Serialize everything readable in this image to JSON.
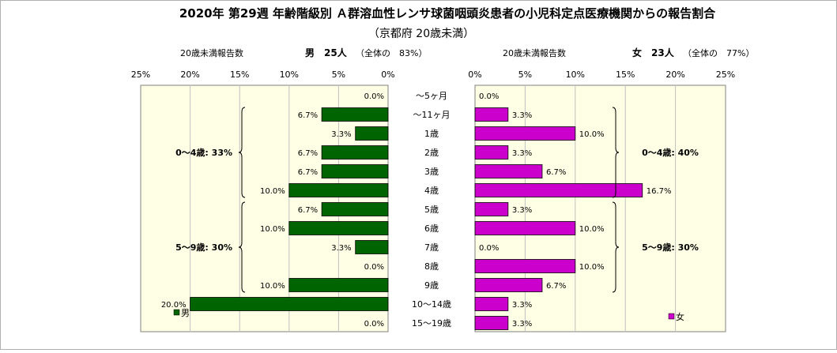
{
  "title": "2020年 第29週 年齢階級別 Ａ群溶血性レンサ球菌咽頭炎患者の小児科定点医療機関からの報告割合",
  "subtitle": "（京都府 20歳未満）",
  "colors": {
    "male": "#006400",
    "female": "#cc00cc",
    "panel_bg": "#ffffe6",
    "grid": "#c0c0c0"
  },
  "chart_data": {
    "type": "bar",
    "orientation": "horizontal-butterfly",
    "categories": [
      "～5ヶ月",
      "～11ヶ月",
      "1歳",
      "2歳",
      "3歳",
      "4歳",
      "5歳",
      "6歳",
      "7歳",
      "8歳",
      "9歳",
      "10～14歳",
      "15～19歳"
    ],
    "xlim": [
      0,
      25
    ],
    "x_ticks": [
      "0%",
      "5%",
      "10%",
      "15%",
      "20%",
      "25%"
    ],
    "grid": true,
    "series": [
      {
        "name": "男",
        "header_label": "20歳未満報告数",
        "header_count": "男　25人",
        "header_share": "（全体の　83%）",
        "values": [
          0.0,
          6.7,
          3.3,
          6.7,
          6.7,
          10.0,
          6.7,
          10.0,
          3.3,
          0.0,
          10.0,
          20.0,
          0.0
        ],
        "labels": [
          "0.0%",
          "6.7%",
          "3.3%",
          "6.7%",
          "6.7%",
          "10.0%",
          "6.7%",
          "10.0%",
          "3.3%",
          "0.0%",
          "10.0%",
          "20.0%",
          "0.0%"
        ],
        "groups": [
          {
            "label": "0～4歳: 33%",
            "from": 1,
            "to": 5
          },
          {
            "label": "5～9歳: 30%",
            "from": 6,
            "to": 10
          }
        ],
        "legend": "男"
      },
      {
        "name": "女",
        "header_label": "20歳未満報告数",
        "header_count": "女　23人",
        "header_share": "（全体の　77%）",
        "values": [
          0.0,
          3.3,
          10.0,
          3.3,
          6.7,
          16.7,
          3.3,
          10.0,
          0.0,
          10.0,
          6.7,
          3.3,
          3.3
        ],
        "labels": [
          "0.0%",
          "3.3%",
          "10.0%",
          "3.3%",
          "6.7%",
          "16.7%",
          "3.3%",
          "10.0%",
          "0.0%",
          "10.0%",
          "6.7%",
          "3.3%",
          "3.3%"
        ],
        "groups": [
          {
            "label": "0～4歳: 40%",
            "from": 1,
            "to": 5
          },
          {
            "label": "5～9歳: 30%",
            "from": 6,
            "to": 10
          }
        ],
        "legend": "女"
      }
    ]
  }
}
